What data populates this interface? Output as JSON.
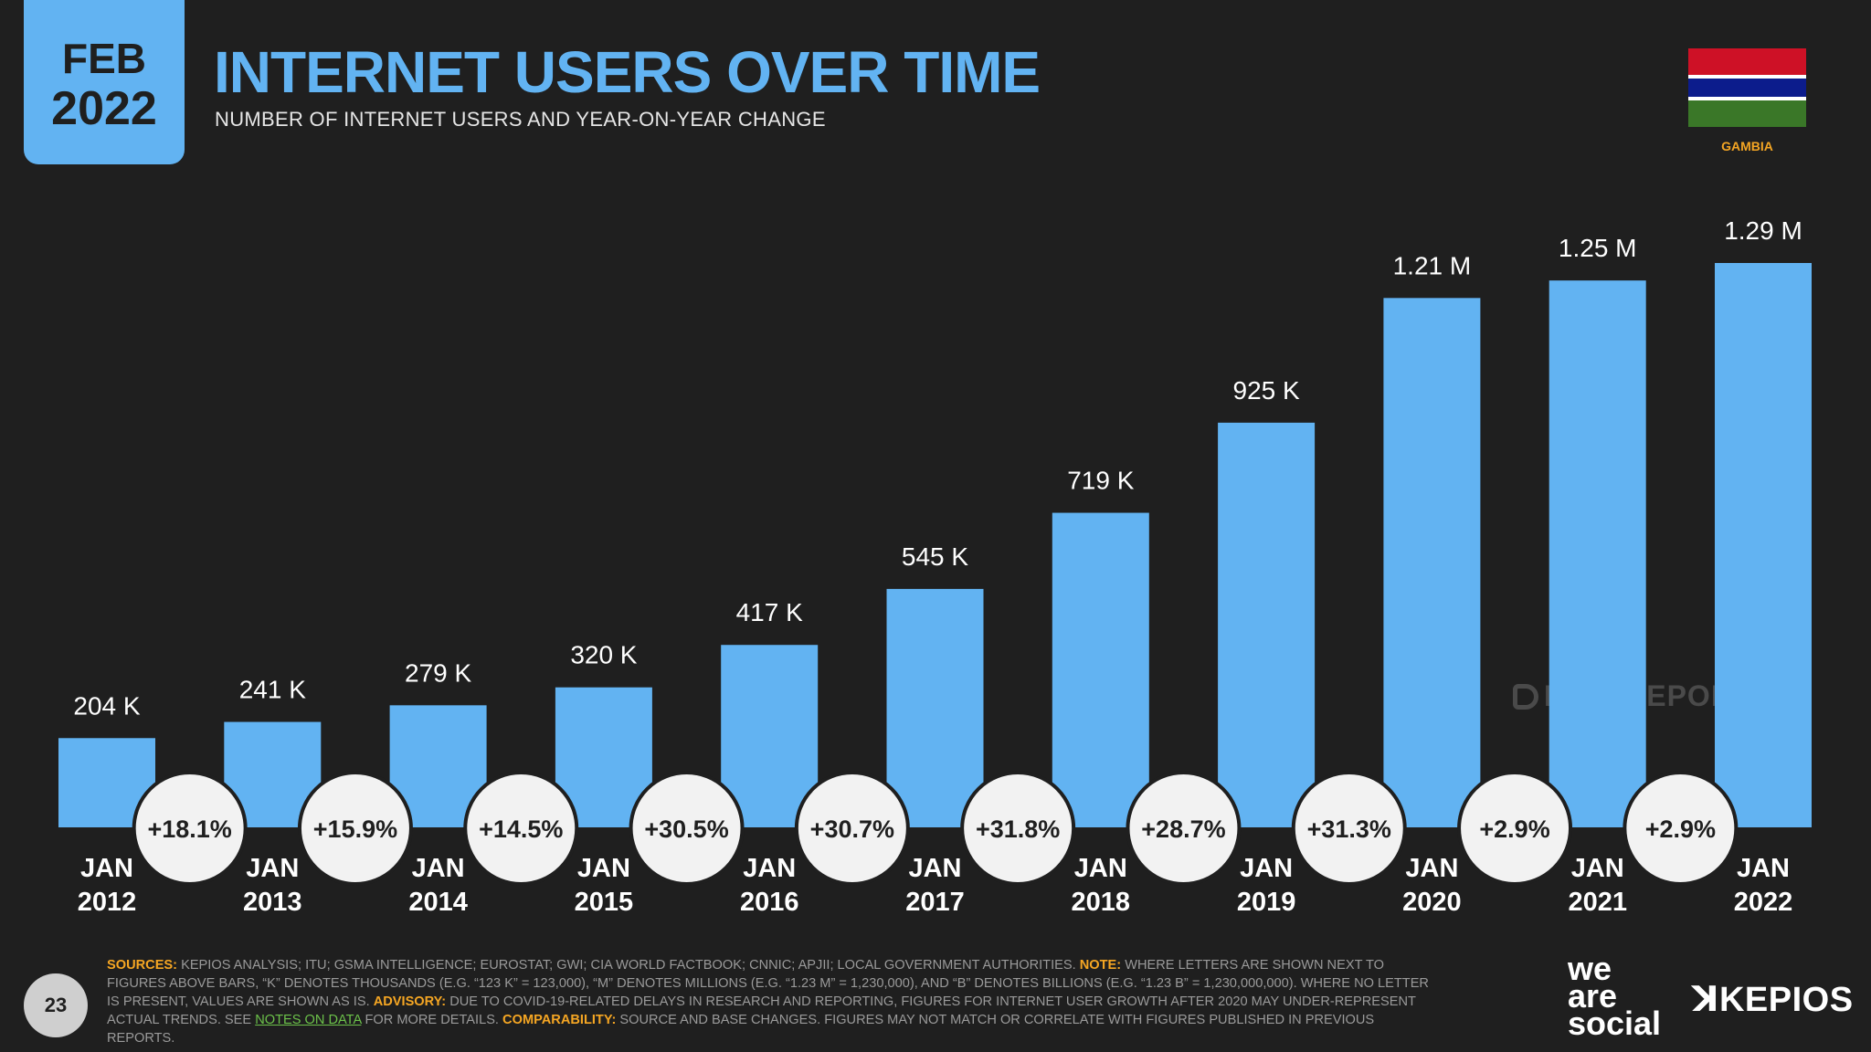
{
  "header": {
    "date_month": "FEB",
    "date_year": "2022",
    "title": "INTERNET USERS OVER TIME",
    "subtitle": "NUMBER OF INTERNET USERS AND YEAR-ON-YEAR CHANGE"
  },
  "flag": {
    "country": "GAMBIA",
    "colors": [
      "#ce1126",
      "#ffffff",
      "#0c1c8c",
      "#ffffff",
      "#3a7728"
    ]
  },
  "watermark": "DATAREPORTAL",
  "chart_data": {
    "type": "bar",
    "title": "INTERNET USERS OVER TIME",
    "subtitle": "NUMBER OF INTERNET USERS AND YEAR-ON-YEAR CHANGE",
    "categories": [
      [
        "JAN",
        "2012"
      ],
      [
        "JAN",
        "2013"
      ],
      [
        "JAN",
        "2014"
      ],
      [
        "JAN",
        "2015"
      ],
      [
        "JAN",
        "2016"
      ],
      [
        "JAN",
        "2017"
      ],
      [
        "JAN",
        "2018"
      ],
      [
        "JAN",
        "2019"
      ],
      [
        "JAN",
        "2020"
      ],
      [
        "JAN",
        "2021"
      ],
      [
        "JAN",
        "2022"
      ]
    ],
    "values": [
      204000,
      241000,
      279000,
      320000,
      417000,
      545000,
      719000,
      925000,
      1210000,
      1250000,
      1290000
    ],
    "value_labels": [
      "204 K",
      "241 K",
      "279 K",
      "320 K",
      "417 K",
      "545 K",
      "719 K",
      "925 K",
      "1.21 M",
      "1.25 M",
      "1.29 M"
    ],
    "yoy_change": [
      "+18.1%",
      "+15.9%",
      "+14.5%",
      "+30.5%",
      "+30.7%",
      "+31.8%",
      "+28.7%",
      "+31.3%",
      "+2.9%",
      "+2.9%"
    ],
    "ylim": [
      0,
      1290000
    ],
    "grid": false,
    "bar_color": "#62b3f2",
    "xlabel": "",
    "ylabel": ""
  },
  "footer": {
    "page_number": "23",
    "sources_label": "SOURCES:",
    "sources_text": " KEPIOS ANALYSIS; ITU; GSMA INTELLIGENCE; EUROSTAT; GWI; CIA WORLD FACTBOOK; CNNIC; APJII; LOCAL GOVERNMENT AUTHORITIES. ",
    "note_label": "NOTE:",
    "note_text": " WHERE LETTERS ARE SHOWN NEXT TO FIGURES ABOVE BARS, “K” DENOTES THOUSANDS (E.G. “123 K” = 123,000), “M” DENOTES MILLIONS (E.G. “1.23 M” = 1,230,000), AND “B” DENOTES BILLIONS (E.G. “1.23 B” = 1,230,000,000). WHERE NO LETTER IS PRESENT, VALUES ARE SHOWN AS IS. ",
    "advisory_label": "ADVISORY:",
    "advisory_text": " DUE TO COVID-19-RELATED DELAYS IN RESEARCH AND REPORTING, FIGURES FOR INTERNET USER GROWTH AFTER 2020 MAY UNDER-REPRESENT ACTUAL TRENDS. SEE ",
    "notes_link": "NOTES ON DATA",
    "advisory_tail": " FOR MORE DETAILS. ",
    "comparability_label": "COMPARABILITY:",
    "comparability_text": " SOURCE AND BASE CHANGES. FIGURES MAY NOT MATCH OR CORRELATE WITH FIGURES PUBLISHED IN PREVIOUS REPORTS.",
    "brand_was_1": "we",
    "brand_was_2": "are",
    "brand_was_3": "social",
    "brand_kepios": "KEPIOS"
  }
}
